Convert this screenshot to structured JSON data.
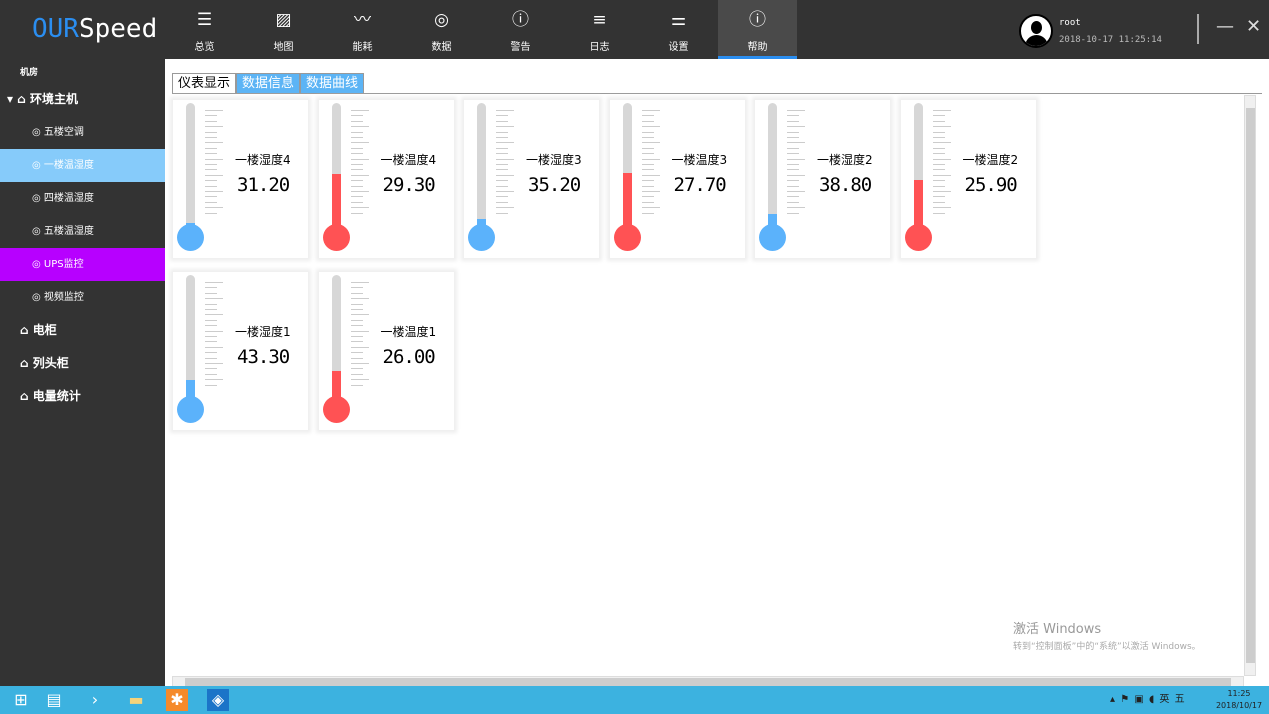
{
  "app": {
    "logo_a": "OUR",
    "logo_b": "Speed"
  },
  "nav": [
    {
      "label": "总览",
      "icon": "list-icon",
      "glyph": "☰"
    },
    {
      "label": "地图",
      "icon": "map-icon",
      "glyph": "▨"
    },
    {
      "label": "能耗",
      "icon": "pulse-icon",
      "glyph": "〰"
    },
    {
      "label": "数据",
      "icon": "gauge-icon",
      "glyph": "◎"
    },
    {
      "label": "警告",
      "icon": "alert-icon",
      "glyph": "ⓘ"
    },
    {
      "label": "日志",
      "icon": "log-icon",
      "glyph": "≡"
    },
    {
      "label": "设置",
      "icon": "sliders-icon",
      "glyph": "⚌"
    },
    {
      "label": "帮助",
      "icon": "help-icon",
      "glyph": "ⓘ",
      "selected": true
    }
  ],
  "user": {
    "name": "root",
    "time": "2018-10-17 11:25:14"
  },
  "window": {
    "minimize": "—",
    "close": "✕"
  },
  "sidebar": {
    "header": "机房",
    "group1": {
      "label": "环境主机",
      "expand": "▾",
      "icon": "⌂"
    },
    "subitems": [
      {
        "label": "五楼空调"
      },
      {
        "label": "一楼温湿度",
        "selected": true
      },
      {
        "label": "四楼温湿度"
      },
      {
        "label": "五楼温湿度"
      },
      {
        "label": "UPS监控",
        "highlight": "#b700ff"
      },
      {
        "label": "视频监控"
      }
    ],
    "groups": [
      {
        "label": "电柜"
      },
      {
        "label": "列头柜"
      },
      {
        "label": "电量统计"
      }
    ]
  },
  "tabs": [
    {
      "label": "仪表显示",
      "active": true
    },
    {
      "label": "数据信息"
    },
    {
      "label": "数据曲线"
    }
  ],
  "gauges": [
    {
      "label": "一楼湿度4",
      "value": "31.20",
      "kind": "humidity",
      "level": 0.02
    },
    {
      "label": "一楼温度4",
      "value": "29.30",
      "kind": "temperature",
      "level": 0.42
    },
    {
      "label": "一楼湿度3",
      "value": "35.20",
      "kind": "humidity",
      "level": 0.05
    },
    {
      "label": "一楼温度3",
      "value": "27.70",
      "kind": "temperature",
      "level": 0.43
    },
    {
      "label": "一楼湿度2",
      "value": "38.80",
      "kind": "humidity",
      "level": 0.09
    },
    {
      "label": "一楼温度2",
      "value": "25.90",
      "kind": "temperature",
      "level": 0.37
    },
    {
      "label": "一楼湿度1",
      "value": "43.30",
      "kind": "humidity",
      "level": 0.14
    },
    {
      "label": "一楼温度1",
      "value": "26.00",
      "kind": "temperature",
      "level": 0.21
    }
  ],
  "colors": {
    "humidity": "#5bb2fb",
    "temperature": "#ff5254",
    "accent": "#2b8ef0"
  },
  "watermark": {
    "line1": "激活 Windows",
    "line2": "转到“控制面板”中的“系统”以激活 Windows。"
  },
  "taskbar": {
    "time": "11:25",
    "date": "2018/10/17",
    "tray": "▴ ⚑ ▣ ◖ 英 五"
  }
}
